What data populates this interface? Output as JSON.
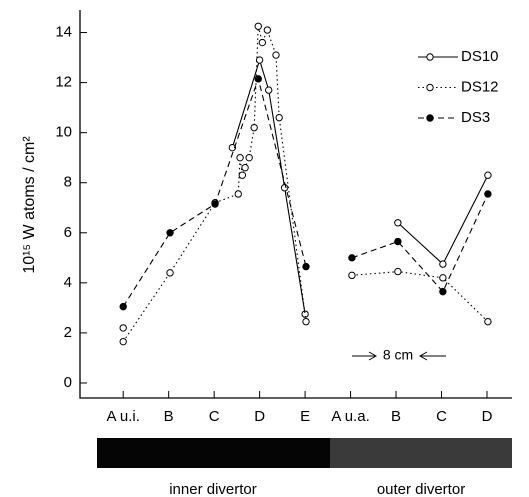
{
  "chart_data": {
    "type": "line",
    "y_label": "10¹⁵ W atoms / cm²",
    "xlim": [
      -0.95,
      8.55
    ],
    "xticks": [
      {
        "value": 0,
        "label": "A u.i."
      },
      {
        "value": 1,
        "label": "B"
      },
      {
        "value": 2,
        "label": "C"
      },
      {
        "value": 3,
        "label": "D"
      },
      {
        "value": 4,
        "label": "E"
      },
      {
        "value": 5,
        "label": "A u.a."
      },
      {
        "value": 6,
        "label": "B"
      },
      {
        "value": 7,
        "label": "C"
      },
      {
        "value": 8,
        "label": "D"
      }
    ],
    "ylim": [
      -0.6,
      14.9
    ],
    "yticks": [
      0,
      2,
      4,
      6,
      8,
      10,
      12,
      14
    ],
    "legend": "upper right",
    "series": [
      {
        "name": "DS10",
        "color": "#000000",
        "dash": "solid",
        "marker": "open",
        "x": [
          0,
          1.2,
          2.4,
          3.0,
          3.2,
          3.55,
          4.0,
          5,
          6.04,
          7.03,
          8.02
        ],
        "values": [
          2.2,
          null,
          9.4,
          12.9,
          11.7,
          7.8,
          2.75,
          null,
          6.4,
          4.75,
          8.3
        ]
      },
      {
        "name": "DS12",
        "color": "#000000",
        "dash": "dotted",
        "marker": "open",
        "x": [
          0,
          1.03,
          2.02,
          2.53,
          2.57,
          2.62,
          2.68,
          2.77,
          2.88,
          2.97,
          3.06,
          3.17,
          3.36,
          3.43,
          4.02,
          4.5,
          5.03,
          6.04,
          7.03,
          8.02
        ],
        "values": [
          1.65,
          4.4,
          7.2,
          7.55,
          9.0,
          8.3,
          8.6,
          9.0,
          10.2,
          14.25,
          13.6,
          14.1,
          13.1,
          10.6,
          2.45,
          null,
          4.3,
          4.45,
          4.2,
          2.45
        ]
      },
      {
        "name": "DS3",
        "color": "#000000",
        "dash": "dashed",
        "marker": "filled",
        "x": [
          0,
          1.03,
          2.02,
          2.97,
          4.02,
          4.5,
          5.03,
          6.04,
          7.03,
          8.02
        ],
        "values": [
          3.05,
          6.0,
          7.15,
          12.15,
          4.65,
          null,
          5.0,
          5.65,
          3.65,
          7.55
        ]
      }
    ],
    "annotation": "8 cm",
    "regions": [
      "inner divertor",
      "outer divertor"
    ]
  }
}
